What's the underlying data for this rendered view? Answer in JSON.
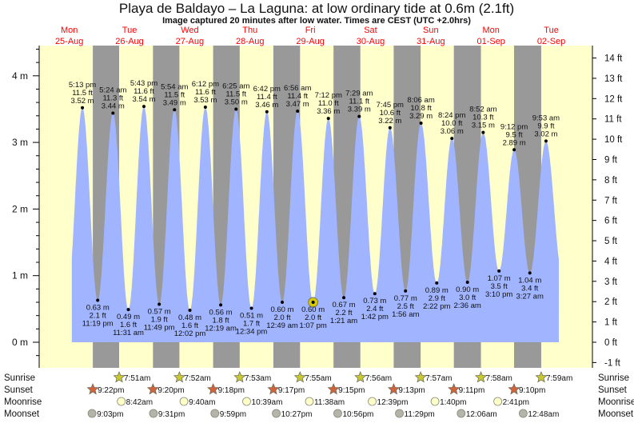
{
  "chart_data": {
    "type": "area",
    "title": "Playa de Baldayo – La Laguna: at low  ordinary tide at 0.6m (2.1ft)",
    "subtitle": "Image captured 20 minutes after low water. Times are CEST (UTC +2.0hrs)",
    "days": [
      {
        "name": "Mon",
        "date": "25-Aug"
      },
      {
        "name": "Tue",
        "date": "26-Aug"
      },
      {
        "name": "Wed",
        "date": "27-Aug"
      },
      {
        "name": "Thu",
        "date": "28-Aug"
      },
      {
        "name": "Fri",
        "date": "29-Aug"
      },
      {
        "name": "Sat",
        "date": "30-Aug"
      },
      {
        "name": "Sun",
        "date": "31-Aug"
      },
      {
        "name": "Mon",
        "date": "01-Sep"
      },
      {
        "name": "Tue",
        "date": "02-Sep"
      }
    ],
    "y_left": {
      "unit": "m",
      "ylim": [
        -0.2,
        4.45
      ],
      "ticks": [
        "0 m",
        "1 m",
        "2 m",
        "3 m",
        "4 m"
      ]
    },
    "y_right": {
      "unit": "ft",
      "ticks": [
        "-1 ft",
        "0 ft",
        "1 ft",
        "2 ft",
        "3 ft",
        "4 ft",
        "5 ft",
        "6 ft",
        "7 ft",
        "8 ft",
        "9 ft",
        "10 ft",
        "11 ft",
        "12 ft",
        "13 ft",
        "14 ft"
      ]
    },
    "extremes": [
      {
        "type": "high",
        "day": 0,
        "time": "5:13 pm",
        "ft": "11.5 ft",
        "m": 3.52,
        "m_label": "3.52 m"
      },
      {
        "type": "low",
        "day": 0,
        "time": "11:19 pm",
        "ft": "2.1 ft",
        "m": 0.63,
        "m_label": "0.63 m"
      },
      {
        "type": "high",
        "day": 1,
        "time": "5:24 am",
        "ft": "11.3 ft",
        "m": 3.44,
        "m_label": "3.44 m"
      },
      {
        "type": "low",
        "day": 1,
        "time": "11:31 am",
        "ft": "1.6 ft",
        "m": 0.49,
        "m_label": "0.49 m"
      },
      {
        "type": "high",
        "day": 1,
        "time": "5:43 pm",
        "ft": "11.6 ft",
        "m": 3.54,
        "m_label": "3.54 m"
      },
      {
        "type": "low",
        "day": 1,
        "time": "11:49 pm",
        "ft": "1.9 ft",
        "m": 0.57,
        "m_label": "0.57 m"
      },
      {
        "type": "high",
        "day": 2,
        "time": "5:54 am",
        "ft": "11.5 ft",
        "m": 3.49,
        "m_label": "3.49 m"
      },
      {
        "type": "low",
        "day": 2,
        "time": "12:02 pm",
        "ft": "1.6 ft",
        "m": 0.48,
        "m_label": "0.48 m"
      },
      {
        "type": "high",
        "day": 2,
        "time": "6:12 pm",
        "ft": "11.6 ft",
        "m": 3.53,
        "m_label": "3.53 m"
      },
      {
        "type": "low",
        "day": 3,
        "time": "12:19 am",
        "ft": "1.8 ft",
        "m": 0.56,
        "m_label": "0.56 m"
      },
      {
        "type": "high",
        "day": 3,
        "time": "6:25 am",
        "ft": "11.5 ft",
        "m": 3.5,
        "m_label": "3.50 m"
      },
      {
        "type": "low",
        "day": 3,
        "time": "12:34 pm",
        "ft": "1.7 ft",
        "m": 0.51,
        "m_label": "0.51 m"
      },
      {
        "type": "high",
        "day": 3,
        "time": "6:42 pm",
        "ft": "11.4 ft",
        "m": 3.46,
        "m_label": "3.46 m"
      },
      {
        "type": "low",
        "day": 4,
        "time": "12:49 am",
        "ft": "2.0 ft",
        "m": 0.6,
        "m_label": "0.60 m"
      },
      {
        "type": "high",
        "day": 4,
        "time": "6:56 am",
        "ft": "11.4 ft",
        "m": 3.47,
        "m_label": "3.47 m"
      },
      {
        "type": "low",
        "day": 4,
        "time": "1:07 pm",
        "ft": "2.0 ft",
        "m": 0.6,
        "m_label": "0.60 m",
        "current": true
      },
      {
        "type": "high",
        "day": 4,
        "time": "7:12 pm",
        "ft": "11.0 ft",
        "m": 3.36,
        "m_label": "3.36 m"
      },
      {
        "type": "low",
        "day": 5,
        "time": "1:21 am",
        "ft": "2.2 ft",
        "m": 0.67,
        "m_label": "0.67 m"
      },
      {
        "type": "high",
        "day": 5,
        "time": "7:29 am",
        "ft": "11.1 ft",
        "m": 3.39,
        "m_label": "3.39 m"
      },
      {
        "type": "low",
        "day": 5,
        "time": "1:42 pm",
        "ft": "2.4 ft",
        "m": 0.73,
        "m_label": "0.73 m"
      },
      {
        "type": "high",
        "day": 5,
        "time": "7:45 pm",
        "ft": "10.6 ft",
        "m": 3.22,
        "m_label": "3.22 m"
      },
      {
        "type": "low",
        "day": 6,
        "time": "1:56 am",
        "ft": "2.5 ft",
        "m": 0.77,
        "m_label": "0.77 m"
      },
      {
        "type": "high",
        "day": 6,
        "time": "8:06 am",
        "ft": "10.8 ft",
        "m": 3.29,
        "m_label": "3.29 m"
      },
      {
        "type": "low",
        "day": 6,
        "time": "2:22 pm",
        "ft": "2.9 ft",
        "m": 0.89,
        "m_label": "0.89 m"
      },
      {
        "type": "high",
        "day": 6,
        "time": "8:24 pm",
        "ft": "10.0 ft",
        "m": 3.06,
        "m_label": "3.06 m"
      },
      {
        "type": "low",
        "day": 7,
        "time": "2:36 am",
        "ft": "3.0 ft",
        "m": 0.9,
        "m_label": "0.90 m"
      },
      {
        "type": "high",
        "day": 7,
        "time": "8:52 am",
        "ft": "10.3 ft",
        "m": 3.15,
        "m_label": "3.15 m"
      },
      {
        "type": "low",
        "day": 7,
        "time": "3:10 pm",
        "ft": "3.5 ft",
        "m": 1.07,
        "m_label": "1.07 m"
      },
      {
        "type": "high",
        "day": 7,
        "time": "9:12 pm",
        "ft": "9.5 ft",
        "m": 2.89,
        "m_label": "2.89 m"
      },
      {
        "type": "low",
        "day": 8,
        "time": "3:27 am",
        "ft": "3.4 ft",
        "m": 1.04,
        "m_label": "1.04 m"
      },
      {
        "type": "high",
        "day": 8,
        "time": "9:53 am",
        "ft": "9.9 ft",
        "m": 3.02,
        "m_label": "3.02 m"
      }
    ],
    "events": [
      {
        "label": "Sunrise",
        "icon": "sunrise-icon",
        "color": "#c8c832",
        "items": [
          {
            "day": 1,
            "time": "7:51am"
          },
          {
            "day": 2,
            "time": "7:52am"
          },
          {
            "day": 3,
            "time": "7:53am"
          },
          {
            "day": 4,
            "time": "7:55am"
          },
          {
            "day": 5,
            "time": "7:56am"
          },
          {
            "day": 6,
            "time": "7:57am"
          },
          {
            "day": 7,
            "time": "7:58am"
          },
          {
            "day": 8,
            "time": "7:59am"
          }
        ]
      },
      {
        "label": "Sunset",
        "icon": "sunset-icon",
        "color": "#d2643c",
        "items": [
          {
            "day": 0,
            "time": "9:22pm"
          },
          {
            "day": 1,
            "time": "9:20pm"
          },
          {
            "day": 2,
            "time": "9:18pm"
          },
          {
            "day": 3,
            "time": "9:17pm"
          },
          {
            "day": 4,
            "time": "9:15pm"
          },
          {
            "day": 5,
            "time": "9:13pm"
          },
          {
            "day": 6,
            "time": "9:11pm"
          },
          {
            "day": 7,
            "time": "9:10pm"
          }
        ]
      },
      {
        "label": "Moonrise",
        "icon": "moonrise-icon",
        "color": "#ffffc8",
        "items": [
          {
            "day": 1,
            "time": "8:42am"
          },
          {
            "day": 2,
            "time": "9:40am"
          },
          {
            "day": 3,
            "time": "10:39am"
          },
          {
            "day": 4,
            "time": "11:38am"
          },
          {
            "day": 5,
            "time": "12:39pm"
          },
          {
            "day": 6,
            "time": "1:40pm"
          },
          {
            "day": 7,
            "time": "2:41pm"
          }
        ]
      },
      {
        "label": "Moonset",
        "icon": "moonset-icon",
        "color": "#b4b4a8",
        "items": [
          {
            "day": 0,
            "time": "9:03pm"
          },
          {
            "day": 1,
            "time": "9:31pm"
          },
          {
            "day": 2,
            "time": "9:59pm"
          },
          {
            "day": 3,
            "time": "10:27pm"
          },
          {
            "day": 4,
            "time": "10:56pm"
          },
          {
            "day": 5,
            "time": "11:29pm"
          },
          {
            "day": 7,
            "time": "12:06am"
          },
          {
            "day": 8,
            "time": "12:48am"
          }
        ]
      }
    ],
    "colors": {
      "day": "#ffffcc",
      "night": "#999999",
      "tide": "#a0b4ff",
      "day_label": "#ff0000",
      "current_marker": "#d4c800"
    },
    "grid": false
  }
}
